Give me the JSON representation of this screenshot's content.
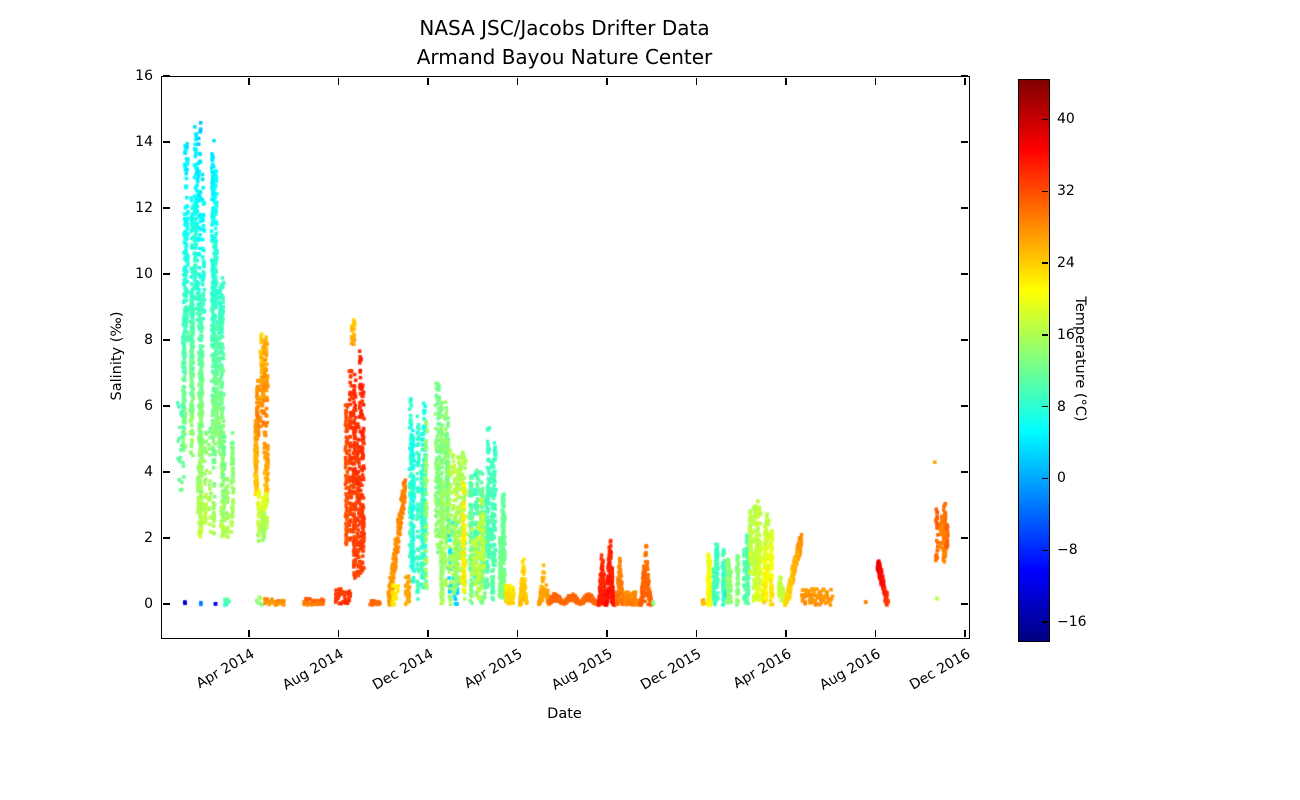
{
  "chart_data": {
    "type": "scatter",
    "title_lines": [
      "NASA JSC/Jacobs Drifter Data",
      "Armand Bayou Nature Center"
    ],
    "xlabel": "Date",
    "ylabel": "Salinity (‰)",
    "xlim": [
      "2013-12-03",
      "2016-12-05"
    ],
    "ylim": [
      -1,
      16
    ],
    "grid": false,
    "x_ticks": [
      {
        "label": "Apr 2014",
        "date": "2014-04-01"
      },
      {
        "label": "Aug 2014",
        "date": "2014-08-01"
      },
      {
        "label": "Dec 2014",
        "date": "2014-12-01"
      },
      {
        "label": "Apr 2015",
        "date": "2015-04-01"
      },
      {
        "label": "Aug 2015",
        "date": "2015-08-01"
      },
      {
        "label": "Dec 2015",
        "date": "2015-12-01"
      },
      {
        "label": "Apr 2016",
        "date": "2016-04-01"
      },
      {
        "label": "Aug 2016",
        "date": "2016-08-01"
      },
      {
        "label": "Dec 2016",
        "date": "2016-12-01"
      }
    ],
    "y_ticks": [
      0,
      2,
      4,
      6,
      8,
      10,
      12,
      14,
      16
    ],
    "colorbar": {
      "label": "Temperature (°C)",
      "ticks": [
        40,
        32,
        24,
        16,
        8,
        0,
        -8,
        -16
      ],
      "vmin": -18,
      "vmax": 44.5,
      "colormap": "jet",
      "position": "right"
    },
    "series": [
      {
        "id": "winter14-cold-plume-high",
        "kind": "streaks",
        "d0": "2014-01-02",
        "d1": "2014-02-16",
        "s": [
          8,
          14.8
        ],
        "temp": [
          10,
          3
        ],
        "n": 560,
        "desc": "dense cyan/blue plume, salinity 8-14.8"
      },
      {
        "id": "winter14-mid",
        "kind": "streaks",
        "d0": "2014-01-02",
        "d1": "2014-02-25",
        "s": [
          4.5,
          10.2
        ],
        "temp": [
          15,
          8
        ],
        "n": 820,
        "desc": "teal-green core"
      },
      {
        "id": "winter14-low",
        "kind": "streaks",
        "d0": "2014-01-20",
        "d1": "2014-03-09",
        "s": [
          2,
          5.6
        ],
        "temp": [
          17,
          12
        ],
        "n": 430,
        "desc": "green/yellow-green tail"
      },
      {
        "id": "dec13-sparse",
        "kind": "dots",
        "d0": "2013-12-24",
        "d1": "2014-01-03",
        "s": [
          3.4,
          6.2
        ],
        "temp": [
          12,
          10
        ],
        "n": 26
      },
      {
        "id": "apr14-col-top",
        "kind": "streaks",
        "d0": "2014-04-06",
        "d1": "2014-04-24",
        "s": [
          5,
          8.3
        ],
        "temp": [
          29,
          25
        ],
        "n": 170
      },
      {
        "id": "apr14-col-mid",
        "kind": "streaks",
        "d0": "2014-04-08",
        "d1": "2014-04-25",
        "s": [
          3.2,
          5.6
        ],
        "temp": [
          24,
          28
        ],
        "n": 150
      },
      {
        "id": "apr14-col-low",
        "kind": "streaks",
        "d0": "2014-04-10",
        "d1": "2014-04-26",
        "s": [
          1.9,
          3.5
        ],
        "temp": [
          15,
          20
        ],
        "n": 120
      },
      {
        "id": "aug14-red-streak",
        "kind": "streaks",
        "d0": "2014-08-10",
        "d1": "2014-09-03",
        "s": [
          0.8,
          8.0
        ],
        "temp": [
          32,
          34
        ],
        "n": 520,
        "desc": "hot red column to salinity 8"
      },
      {
        "id": "aug14-top-dots",
        "kind": "dots",
        "d0": "2014-08-17",
        "d1": "2014-08-22",
        "s": [
          7.9,
          8.7
        ],
        "temp": [
          27,
          24
        ],
        "n": 22
      },
      {
        "id": "aug14-zero-row",
        "kind": "dots",
        "d0": "2014-07-26",
        "d1": "2014-08-16",
        "s": [
          0,
          0.5
        ],
        "temp": [
          34,
          33
        ],
        "n": 42
      },
      {
        "id": "oct14-rise",
        "kind": "diag",
        "d0": "2014-10-07",
        "d1": "2014-10-29",
        "s": [
          0.05,
          3.6
        ],
        "temp": [
          27,
          29
        ],
        "n": 210
      },
      {
        "id": "oct14-yellow",
        "kind": "dots",
        "d0": "2014-10-12",
        "d1": "2014-10-20",
        "s": [
          0,
          0.6
        ],
        "temp": [
          23,
          22
        ],
        "n": 26
      },
      {
        "id": "nov14-orange-base",
        "kind": "dots",
        "d0": "2014-10-30",
        "d1": "2014-11-06",
        "s": [
          0,
          0.9
        ],
        "temp": [
          26,
          27
        ],
        "n": 30
      },
      {
        "id": "nov14-cyan",
        "kind": "streaks",
        "d0": "2014-10-30",
        "d1": "2014-11-27",
        "s": [
          0,
          6.3
        ],
        "temp": [
          9,
          7
        ],
        "n": 430
      },
      {
        "id": "dec14-green",
        "kind": "streaks",
        "d0": "2014-11-27",
        "d1": "2014-12-27",
        "s": [
          0,
          6.8
        ],
        "temp": [
          15,
          13
        ],
        "n": 540
      },
      {
        "id": "jan15-blue-dots",
        "kind": "dots",
        "d0": "2014-12-28",
        "d1": "2015-01-11",
        "s": [
          0,
          2.6
        ],
        "temp": [
          3,
          5
        ],
        "n": 70
      },
      {
        "id": "jan15-green",
        "kind": "streaks",
        "d0": "2014-12-28",
        "d1": "2015-01-28",
        "s": [
          0,
          4.8
        ],
        "temp": [
          15,
          16
        ],
        "n": 270
      },
      {
        "id": "jan15-yellow-col",
        "kind": "streaks",
        "d0": "2015-01-14",
        "d1": "2015-01-19",
        "s": [
          0.3,
          4.0
        ],
        "temp": [
          21,
          21
        ],
        "n": 60
      },
      {
        "id": "feb15-teal",
        "kind": "streaks",
        "d0": "2015-01-25",
        "d1": "2015-02-20",
        "s": [
          0,
          4.2
        ],
        "temp": [
          12,
          10
        ],
        "n": 330
      },
      {
        "id": "feb15-yellowgreen",
        "kind": "streaks",
        "d0": "2015-01-27",
        "d1": "2015-02-18",
        "s": [
          0,
          3.4
        ],
        "temp": [
          16,
          17
        ],
        "n": 120
      },
      {
        "id": "feb15-cyan-tall",
        "kind": "streaks",
        "d0": "2015-02-20",
        "d1": "2015-03-01",
        "s": [
          0,
          5.8
        ],
        "temp": [
          10,
          8
        ],
        "n": 200
      },
      {
        "id": "mar15-teal",
        "kind": "streaks",
        "d0": "2015-03-01",
        "d1": "2015-03-13",
        "s": [
          0,
          3.6
        ],
        "temp": [
          13,
          11
        ],
        "n": 210
      },
      {
        "id": "mar15-orange-base",
        "kind": "dots",
        "d0": "2015-03-14",
        "d1": "2015-03-25",
        "s": [
          0,
          0.6
        ],
        "temp": [
          24,
          22
        ],
        "n": 70
      },
      {
        "id": "apr15-peak1",
        "kind": "peak",
        "d0": "2015-04-03",
        "d1": "2015-04-12",
        "s": [
          0,
          1.5
        ],
        "temp": [
          25,
          23
        ],
        "n": 85
      },
      {
        "id": "may15-peak",
        "kind": "peak",
        "d0": "2015-04-29",
        "d1": "2015-05-12",
        "s": [
          0,
          1.3
        ],
        "temp": [
          27,
          25
        ],
        "n": 75
      },
      {
        "id": "summer15-meander",
        "kind": "row",
        "d0": "2015-05-12",
        "d1": "2015-07-22",
        "s": [
          0,
          0.35
        ],
        "temp": [
          30,
          31
        ],
        "n": 380,
        "desc": "hot low-salinity ribbon"
      },
      {
        "id": "jul15-red-peak1",
        "kind": "peak",
        "d0": "2015-07-19",
        "d1": "2015-07-28",
        "s": [
          0,
          1.6
        ],
        "temp": [
          35,
          34
        ],
        "n": 110
      },
      {
        "id": "aug15-red-peak2",
        "kind": "peak",
        "d0": "2015-07-29",
        "d1": "2015-08-09",
        "s": [
          0,
          2.1
        ],
        "temp": [
          36,
          34
        ],
        "n": 130
      },
      {
        "id": "aug15-orange-col",
        "kind": "peak",
        "d0": "2015-08-13",
        "d1": "2015-08-21",
        "s": [
          0,
          1.55
        ],
        "temp": [
          30,
          28
        ],
        "n": 90
      },
      {
        "id": "sep15-base",
        "kind": "dots",
        "d0": "2015-08-23",
        "d1": "2015-09-11",
        "s": [
          0,
          0.4
        ],
        "temp": [
          29,
          28
        ],
        "n": 60
      },
      {
        "id": "sep15-spike",
        "kind": "peak",
        "d0": "2015-09-15",
        "d1": "2015-09-29",
        "s": [
          0,
          1.95
        ],
        "temp": [
          31,
          29
        ],
        "n": 150
      },
      {
        "id": "oct15-green-dot",
        "kind": "dots",
        "d0": "2015-10-01",
        "d1": "2015-10-02",
        "s": [
          0,
          0.1
        ],
        "temp": [
          14,
          14
        ],
        "n": 2
      },
      {
        "id": "dec15-dots",
        "kind": "dots",
        "d0": "2015-12-06",
        "d1": "2015-12-10",
        "s": [
          0,
          0.2
        ],
        "temp": [
          24,
          27
        ],
        "n": 4
      },
      {
        "id": "dec15-yellow",
        "kind": "streaks",
        "d0": "2015-12-11",
        "d1": "2015-12-23",
        "s": [
          0,
          1.85
        ],
        "temp": [
          22,
          20
        ],
        "n": 130
      },
      {
        "id": "jan16-teal",
        "kind": "streaks",
        "d0": "2015-12-23",
        "d1": "2016-01-12",
        "s": [
          0,
          1.85
        ],
        "temp": [
          10,
          9
        ],
        "n": 180
      },
      {
        "id": "jan16-blue-dots",
        "kind": "dots",
        "d0": "2016-01-09",
        "d1": "2016-01-11",
        "s": [
          0.2,
          0.5
        ],
        "temp": [
          0,
          1
        ],
        "n": 3
      },
      {
        "id": "jan16-green",
        "kind": "streaks",
        "d0": "2016-01-12",
        "d1": "2016-01-27",
        "s": [
          0,
          1.6
        ],
        "temp": [
          14,
          13
        ],
        "n": 150
      },
      {
        "id": "feb16-cyangreen",
        "kind": "streaks",
        "d0": "2016-02-01",
        "d1": "2016-02-10",
        "s": [
          0,
          2.5
        ],
        "temp": [
          12,
          11
        ],
        "n": 90
      },
      {
        "id": "feb16-mixed",
        "kind": "streaks",
        "d0": "2016-02-10",
        "d1": "2016-02-26",
        "s": [
          0,
          3.15
        ],
        "temp": [
          19,
          17
        ],
        "n": 220
      },
      {
        "id": "mar16-yellow",
        "kind": "streaks",
        "d0": "2016-03-01",
        "d1": "2016-03-16",
        "s": [
          0,
          2.95
        ],
        "temp": [
          23,
          17
        ],
        "n": 200
      },
      {
        "id": "mar16-short",
        "kind": "streaks",
        "d0": "2016-03-18",
        "d1": "2016-03-28",
        "s": [
          0,
          1.0
        ],
        "temp": [
          18,
          16
        ],
        "n": 80
      },
      {
        "id": "apr16-rise",
        "kind": "diag",
        "d0": "2016-03-30",
        "d1": "2016-04-20",
        "s": [
          0.05,
          2.0
        ],
        "temp": [
          23,
          28
        ],
        "n": 160
      },
      {
        "id": "may16-orange-row",
        "kind": "dots",
        "d0": "2016-04-20",
        "d1": "2016-06-03",
        "s": [
          0,
          0.5
        ],
        "temp": [
          28,
          27
        ],
        "n": 85
      },
      {
        "id": "jul16-dot",
        "kind": "dots",
        "d0": "2016-07-16",
        "d1": "2016-07-17",
        "s": [
          0,
          0.1
        ],
        "temp": [
          29,
          29
        ],
        "n": 2
      },
      {
        "id": "aug16-red-streak",
        "kind": "diag",
        "d0": "2016-08-03",
        "d1": "2016-08-16",
        "s": [
          1.25,
          0.05
        ],
        "temp": [
          38,
          33
        ],
        "n": 130,
        "desc": "dark red descending streak"
      },
      {
        "id": "nov16-orange-col",
        "kind": "streaks",
        "d0": "2016-10-20",
        "d1": "2016-11-07",
        "s": [
          1.3,
          3.1
        ],
        "temp": [
          29,
          30
        ],
        "n": 150
      },
      {
        "id": "nov16-lone-dot",
        "kind": "dots",
        "d0": "2016-10-19",
        "d1": "2016-10-20",
        "s": [
          4.3,
          4.4
        ],
        "temp": [
          26,
          26
        ],
        "n": 1
      },
      {
        "id": "nov16-base-pair",
        "kind": "dots",
        "d0": "2016-10-19",
        "d1": "2016-10-25",
        "s": [
          0.05,
          0.2
        ],
        "temp": [
          22,
          16
        ],
        "n": 2
      },
      {
        "id": "jan14-navy-dot",
        "kind": "dots",
        "d0": "2014-01-02",
        "d1": "2014-01-04",
        "s": [
          0,
          0.12
        ],
        "temp": [
          -13,
          -12
        ],
        "n": 3
      },
      {
        "id": "jan14-blue-dot",
        "kind": "dots",
        "d0": "2014-01-25",
        "d1": "2014-01-26",
        "s": [
          0,
          0.1
        ],
        "temp": [
          -3,
          -3
        ],
        "n": 2
      },
      {
        "id": "feb14-navy-dot",
        "kind": "dots",
        "d0": "2014-02-14",
        "d1": "2014-02-15",
        "s": [
          0,
          0.1
        ],
        "temp": [
          -13,
          -12
        ],
        "n": 2
      },
      {
        "id": "feb14-teal-row",
        "kind": "dots",
        "d0": "2014-02-23",
        "d1": "2014-03-04",
        "s": [
          0,
          0.18
        ],
        "temp": [
          9,
          11
        ],
        "n": 10
      },
      {
        "id": "apr14-green-row",
        "kind": "dots",
        "d0": "2014-04-10",
        "d1": "2014-04-17",
        "s": [
          0,
          0.25
        ],
        "temp": [
          13,
          15
        ],
        "n": 7
      },
      {
        "id": "may14-orange-row",
        "kind": "dots",
        "d0": "2014-04-21",
        "d1": "2014-05-17",
        "s": [
          0,
          0.2
        ],
        "temp": [
          27,
          29
        ],
        "n": 24
      },
      {
        "id": "jun14-orange-row",
        "kind": "dots",
        "d0": "2014-06-13",
        "d1": "2014-07-10",
        "s": [
          0,
          0.2
        ],
        "temp": [
          29,
          31
        ],
        "n": 28
      },
      {
        "id": "sep14-orange-row",
        "kind": "dots",
        "d0": "2014-09-11",
        "d1": "2014-09-29",
        "s": [
          0,
          0.15
        ],
        "temp": [
          30,
          31
        ],
        "n": 18
      }
    ]
  }
}
